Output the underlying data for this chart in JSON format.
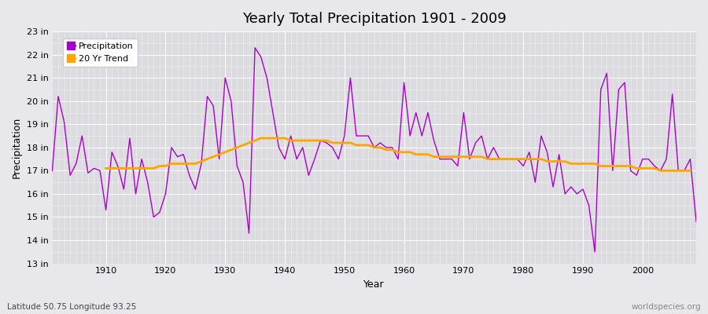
{
  "title": "Yearly Total Precipitation 1901 - 2009",
  "xlabel": "Year",
  "ylabel": "Precipitation",
  "subtitle": "Latitude 50.75 Longitude 93.25",
  "watermark": "worldspecies.org",
  "precipitation_color": "#AA00CC",
  "trend_color": "#FFA500",
  "fig_bg_color": "#E8E8EC",
  "plot_bg_color": "#DCDCE0",
  "ylim": [
    13,
    23
  ],
  "xlim": [
    1901,
    2009
  ],
  "years": [
    1901,
    1902,
    1903,
    1904,
    1905,
    1906,
    1907,
    1908,
    1909,
    1910,
    1911,
    1912,
    1913,
    1914,
    1915,
    1916,
    1917,
    1918,
    1919,
    1920,
    1921,
    1922,
    1923,
    1924,
    1925,
    1926,
    1927,
    1928,
    1929,
    1930,
    1931,
    1932,
    1933,
    1934,
    1935,
    1936,
    1937,
    1938,
    1939,
    1940,
    1941,
    1942,
    1943,
    1944,
    1945,
    1946,
    1947,
    1948,
    1949,
    1950,
    1951,
    1952,
    1953,
    1954,
    1955,
    1956,
    1957,
    1958,
    1959,
    1960,
    1961,
    1962,
    1963,
    1964,
    1965,
    1966,
    1967,
    1968,
    1969,
    1970,
    1971,
    1972,
    1973,
    1974,
    1975,
    1976,
    1977,
    1978,
    1979,
    1980,
    1981,
    1982,
    1983,
    1984,
    1985,
    1986,
    1987,
    1988,
    1989,
    1990,
    1991,
    1992,
    1993,
    1994,
    1995,
    1996,
    1997,
    1998,
    1999,
    2000,
    2001,
    2002,
    2003,
    2004,
    2005,
    2006,
    2007,
    2008,
    2009
  ],
  "precipitation": [
    17.0,
    20.2,
    19.1,
    16.8,
    17.3,
    18.5,
    16.9,
    17.1,
    17.0,
    15.3,
    17.8,
    17.2,
    16.2,
    18.4,
    16.0,
    17.5,
    16.5,
    15.0,
    15.2,
    16.0,
    18.0,
    17.6,
    17.7,
    16.8,
    16.2,
    17.3,
    20.2,
    19.8,
    17.5,
    21.0,
    20.0,
    17.2,
    16.5,
    14.3,
    22.3,
    21.9,
    21.0,
    19.5,
    18.0,
    17.5,
    18.5,
    17.5,
    18.0,
    16.8,
    17.5,
    18.3,
    18.2,
    18.0,
    17.5,
    18.5,
    21.0,
    18.5,
    18.5,
    18.5,
    18.0,
    18.2,
    18.0,
    18.0,
    17.5,
    20.8,
    18.5,
    19.5,
    18.5,
    19.5,
    18.3,
    17.5,
    17.5,
    17.5,
    17.2,
    19.5,
    17.5,
    18.2,
    18.5,
    17.5,
    18.0,
    17.5,
    17.5,
    17.5,
    17.5,
    17.2,
    17.8,
    16.5,
    18.5,
    17.8,
    16.3,
    17.7,
    16.0,
    16.3,
    16.0,
    16.2,
    15.5,
    13.5,
    20.5,
    21.2,
    17.0,
    20.5,
    20.8,
    17.0,
    16.8,
    17.5,
    17.5,
    17.2,
    17.0,
    17.5,
    20.3,
    17.0,
    17.0,
    17.5,
    14.8
  ],
  "trend": [
    null,
    null,
    null,
    null,
    null,
    null,
    null,
    null,
    null,
    17.1,
    17.1,
    17.1,
    17.1,
    17.1,
    17.1,
    17.1,
    17.1,
    17.1,
    17.2,
    17.2,
    17.3,
    17.3,
    17.3,
    17.3,
    17.3,
    17.4,
    17.5,
    17.6,
    17.7,
    17.8,
    17.9,
    18.0,
    18.1,
    18.2,
    18.3,
    18.4,
    18.4,
    18.4,
    18.4,
    18.4,
    18.3,
    18.3,
    18.3,
    18.3,
    18.3,
    18.3,
    18.3,
    18.2,
    18.2,
    18.2,
    18.2,
    18.1,
    18.1,
    18.1,
    18.0,
    18.0,
    17.9,
    17.9,
    17.8,
    17.8,
    17.8,
    17.7,
    17.7,
    17.7,
    17.6,
    17.6,
    17.6,
    17.6,
    17.6,
    17.6,
    17.6,
    17.6,
    17.6,
    17.5,
    17.5,
    17.5,
    17.5,
    17.5,
    17.5,
    17.5,
    17.5,
    17.5,
    17.5,
    17.4,
    17.4,
    17.4,
    17.4,
    17.3,
    17.3,
    17.3,
    17.3,
    17.3,
    17.2,
    17.2,
    17.2,
    17.2,
    17.2,
    17.2,
    17.1,
    17.1,
    17.1,
    17.1,
    17.0,
    17.0,
    17.0,
    17.0,
    17.0,
    17.0,
    null
  ]
}
